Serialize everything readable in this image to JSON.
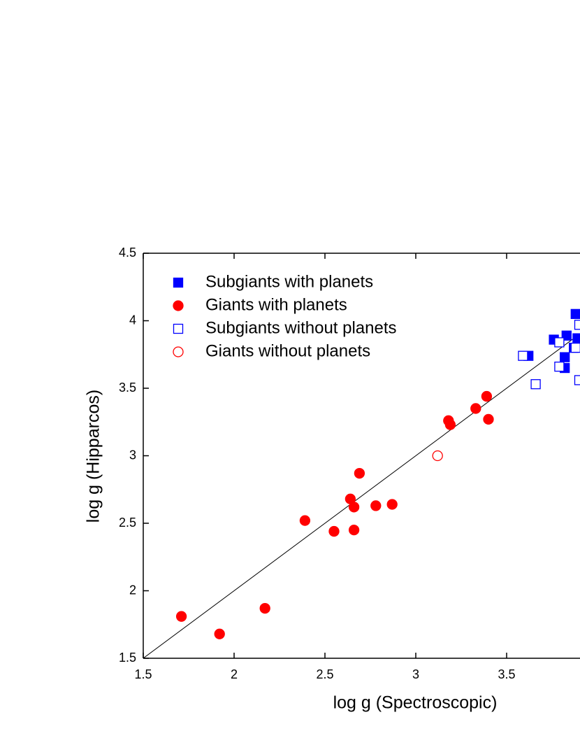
{
  "chart_data": {
    "type": "scatter",
    "xlabel": "log g (Spectroscopic)",
    "ylabel": "log g (Hipparcos)",
    "xlim": [
      1.5,
      3.9
    ],
    "ylim": [
      1.5,
      4.5
    ],
    "xticks": [
      1.5,
      2.0,
      2.5,
      3.0,
      3.5
    ],
    "yticks": [
      1.5,
      2.0,
      2.5,
      3.0,
      3.5,
      4.0,
      4.5
    ],
    "identity_line": true,
    "legend": "upper left",
    "series": [
      {
        "name": "Subgiants with planets",
        "color": "#0000ff",
        "marker": "square",
        "filled": true,
        "x": [
          3.62,
          3.76,
          3.83,
          3.82,
          3.82,
          3.88,
          3.89,
          3.87
        ],
        "values": [
          3.74,
          3.86,
          3.89,
          3.73,
          3.65,
          4.05,
          3.87,
          3.8
        ]
      },
      {
        "name": "Giants with planets",
        "color": "#ff0000",
        "marker": "circle",
        "filled": true,
        "x": [
          1.71,
          1.92,
          2.17,
          2.39,
          2.55,
          2.64,
          2.66,
          2.66,
          2.69,
          2.78,
          2.87,
          3.18,
          3.19,
          3.33,
          3.39,
          3.4
        ],
        "values": [
          1.81,
          1.68,
          1.87,
          2.52,
          2.44,
          2.68,
          2.62,
          2.45,
          2.87,
          2.63,
          2.64,
          3.26,
          3.23,
          3.35,
          3.44,
          3.27
        ]
      },
      {
        "name": "Subgiants without planets",
        "color": "#0000ff",
        "marker": "square",
        "filled": false,
        "x": [
          3.59,
          3.66,
          3.79,
          3.79,
          3.9,
          3.9,
          3.88
        ],
        "values": [
          3.74,
          3.53,
          3.84,
          3.66,
          3.97,
          3.56,
          3.8
        ]
      },
      {
        "name": "Giants without planets",
        "color": "#ff0000",
        "marker": "circle",
        "filled": false,
        "x": [
          3.12
        ],
        "values": [
          3.0
        ]
      }
    ]
  }
}
